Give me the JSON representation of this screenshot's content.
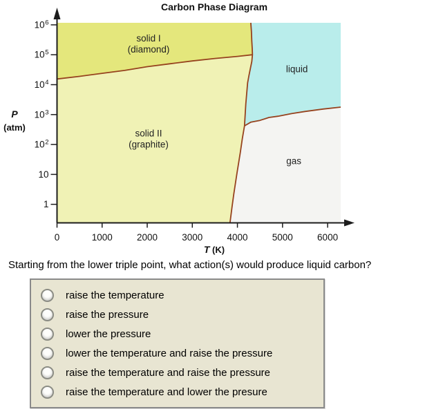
{
  "chart_data": {
    "type": "area",
    "title": "Carbon Phase Diagram",
    "xlabel_symbol": "T",
    "xlabel_unit": " (K)",
    "ylabel_symbol": "P",
    "ylabel_unit": "(atm)",
    "xlim": [
      0,
      6290
    ],
    "ylim": [
      0.24,
      1170000
    ],
    "y_scale": "log",
    "grid": false,
    "x_ticks": [
      {
        "v": 0,
        "label": "0"
      },
      {
        "v": 1000,
        "label": "1000"
      },
      {
        "v": 2000,
        "label": "2000"
      },
      {
        "v": 3000,
        "label": "3000"
      },
      {
        "v": 4000,
        "label": "4000"
      },
      {
        "v": 5000,
        "label": "5000"
      },
      {
        "v": 6000,
        "label": "6000"
      }
    ],
    "y_ticks": [
      {
        "v": 1000000,
        "base": "10",
        "exp": "6"
      },
      {
        "v": 100000,
        "base": "10",
        "exp": "5"
      },
      {
        "v": 10000,
        "base": "10",
        "exp": "4"
      },
      {
        "v": 1000,
        "base": "10",
        "exp": "3"
      },
      {
        "v": 100,
        "base": "10",
        "exp": "2"
      },
      {
        "v": 10,
        "base": "10",
        "exp": ""
      },
      {
        "v": 1,
        "base": "1",
        "exp": ""
      }
    ],
    "line_color": "#96421e",
    "axis_color": "#1c1c1c",
    "regions": [
      {
        "name": "solid-i-diamond",
        "label_lines": [
          "solid I",
          "(diamond)"
        ],
        "label_at": [
          2030,
          240000
        ],
        "fill": "#e4e77c",
        "points": [
          [
            0,
            1170000
          ],
          [
            4296,
            1170000
          ],
          [
            4310,
            600000
          ],
          [
            4318,
            300000
          ],
          [
            4328,
            160000
          ],
          [
            4334,
            100000
          ],
          [
            4000,
            88000
          ],
          [
            3500,
            75000
          ],
          [
            3000,
            62000
          ],
          [
            2500,
            50000
          ],
          [
            2000,
            40000
          ],
          [
            1500,
            30000
          ],
          [
            1000,
            24000
          ],
          [
            500,
            19000
          ],
          [
            0,
            15500
          ]
        ]
      },
      {
        "name": "solid-ii-graphite",
        "label_lines": [
          "solid II",
          "(graphite)"
        ],
        "label_at": [
          2030,
          160
        ],
        "fill": "#f0f2b5",
        "points": [
          [
            0,
            15500
          ],
          [
            500,
            19000
          ],
          [
            1000,
            24000
          ],
          [
            1500,
            30000
          ],
          [
            2000,
            40000
          ],
          [
            2500,
            50000
          ],
          [
            3000,
            62000
          ],
          [
            3500,
            75000
          ],
          [
            4000,
            88000
          ],
          [
            4334,
            100000
          ],
          [
            4320,
            60000
          ],
          [
            4285,
            33000
          ],
          [
            4255,
            20000
          ],
          [
            4226,
            11500
          ],
          [
            4186,
            2300
          ],
          [
            4157,
            420
          ],
          [
            4110,
            160
          ],
          [
            4065,
            55
          ],
          [
            3990,
            11
          ],
          [
            3920,
            2.2
          ],
          [
            3880,
            0.8
          ],
          [
            3835,
            0.24
          ],
          [
            0,
            0.24
          ]
        ]
      },
      {
        "name": "liquid",
        "label_lines": [
          "liquid"
        ],
        "label_at": [
          5320,
          33000
        ],
        "fill": "#b9edeb",
        "points": [
          [
            4296,
            1170000
          ],
          [
            6290,
            1170000
          ],
          [
            6290,
            1780
          ],
          [
            5900,
            1530
          ],
          [
            5500,
            1270
          ],
          [
            5200,
            1080
          ],
          [
            4900,
            880
          ],
          [
            4700,
            800
          ],
          [
            4500,
            640
          ],
          [
            4300,
            560
          ],
          [
            4157,
            420
          ],
          [
            4186,
            2300
          ],
          [
            4226,
            11500
          ],
          [
            4255,
            20000
          ],
          [
            4285,
            33000
          ],
          [
            4320,
            60000
          ],
          [
            4334,
            100000
          ],
          [
            4328,
            160000
          ],
          [
            4318,
            300000
          ],
          [
            4310,
            600000
          ]
        ]
      },
      {
        "name": "gas",
        "label_lines": [
          "gas"
        ],
        "label_at": [
          5250,
          28
        ],
        "fill": "#f4f4f2",
        "points": [
          [
            4157,
            420
          ],
          [
            4300,
            560
          ],
          [
            4500,
            640
          ],
          [
            4700,
            800
          ],
          [
            4900,
            880
          ],
          [
            5200,
            1080
          ],
          [
            5500,
            1270
          ],
          [
            5900,
            1530
          ],
          [
            6290,
            1780
          ],
          [
            6290,
            0.24
          ],
          [
            3835,
            0.24
          ],
          [
            3880,
            0.8
          ],
          [
            3920,
            2.2
          ],
          [
            3990,
            11
          ],
          [
            4065,
            55
          ],
          [
            4110,
            160
          ]
        ]
      }
    ],
    "boundaries": [
      {
        "name": "solid1-solid2-boundary",
        "points": [
          [
            0,
            15500
          ],
          [
            500,
            19000
          ],
          [
            1000,
            24000
          ],
          [
            1500,
            30000
          ],
          [
            2000,
            40000
          ],
          [
            2500,
            50000
          ],
          [
            3000,
            62000
          ],
          [
            3500,
            75000
          ],
          [
            4000,
            88000
          ],
          [
            4334,
            100000
          ]
        ]
      },
      {
        "name": "melting-line",
        "points": [
          [
            4296,
            1170000
          ],
          [
            4310,
            600000
          ],
          [
            4318,
            300000
          ],
          [
            4328,
            160000
          ],
          [
            4334,
            100000
          ],
          [
            4320,
            60000
          ],
          [
            4285,
            33000
          ],
          [
            4255,
            20000
          ],
          [
            4226,
            11500
          ],
          [
            4186,
            2300
          ],
          [
            4157,
            420
          ]
        ]
      },
      {
        "name": "boiling-line",
        "points": [
          [
            4157,
            420
          ],
          [
            4300,
            560
          ],
          [
            4500,
            640
          ],
          [
            4700,
            800
          ],
          [
            4900,
            880
          ],
          [
            5200,
            1080
          ],
          [
            5500,
            1270
          ],
          [
            5900,
            1530
          ],
          [
            6290,
            1780
          ]
        ]
      },
      {
        "name": "sublimation-line",
        "points": [
          [
            4157,
            420
          ],
          [
            4110,
            160
          ],
          [
            4065,
            55
          ],
          [
            3990,
            11
          ],
          [
            3920,
            2.2
          ],
          [
            3880,
            0.8
          ],
          [
            3835,
            0.24
          ]
        ]
      }
    ]
  },
  "question": {
    "text": "Starting from the lower triple point, what action(s) would produce liquid carbon?",
    "options": [
      {
        "label": "raise the temperature"
      },
      {
        "label": "raise the pressure"
      },
      {
        "label": "lower the pressure"
      },
      {
        "label": "lower the temperature and raise the pressure"
      },
      {
        "label": "raise the temperature and raise the pressure"
      },
      {
        "label": "raise the temperature and lower the presure"
      }
    ]
  },
  "panel": {
    "bg": "#e8e5d2",
    "border": "#8a8a8a"
  }
}
